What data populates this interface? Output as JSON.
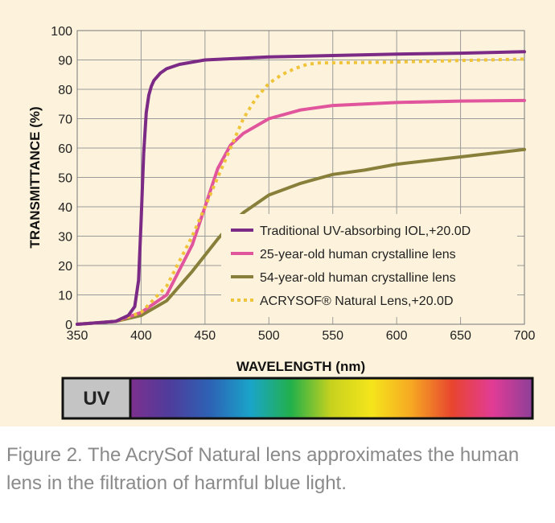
{
  "chart_data": {
    "type": "line",
    "xlabel": "WAVELENGTH (nm)",
    "ylabel": "TRANSMITTANCE (%)",
    "xlim": [
      350,
      700
    ],
    "ylim": [
      0,
      100
    ],
    "x_ticks": [
      350,
      400,
      450,
      500,
      550,
      600,
      650,
      700
    ],
    "y_ticks": [
      0,
      10,
      20,
      30,
      40,
      50,
      60,
      70,
      80,
      90,
      100
    ],
    "grid": true,
    "legend_placement": "bottom-right",
    "series": [
      {
        "name": "Traditional UV-absorbing IOL,+20.0D",
        "color": "#7b2a86",
        "style": "solid",
        "x": [
          350,
          380,
          390,
          395,
          398,
          400,
          402,
          404,
          406,
          408,
          410,
          415,
          420,
          430,
          450,
          500,
          550,
          600,
          650,
          700
        ],
        "y": [
          0,
          1,
          3,
          6,
          15,
          35,
          58,
          72,
          78,
          81,
          83,
          85.5,
          87,
          88.5,
          90,
          91,
          91.5,
          92,
          92.3,
          92.8
        ]
      },
      {
        "name": "25-year-old human crystalline lens",
        "color": "#e0559c",
        "style": "solid",
        "x": [
          350,
          380,
          400,
          420,
          440,
          450,
          460,
          470,
          480,
          500,
          525,
          550,
          600,
          650,
          700
        ],
        "y": [
          0,
          1,
          4,
          10,
          27,
          40,
          53,
          61,
          65,
          70,
          73,
          74.5,
          75.5,
          76,
          76.2
        ]
      },
      {
        "name": "54-year-old human crystalline lens",
        "color": "#877f3a",
        "style": "solid",
        "x": [
          350,
          380,
          400,
          420,
          440,
          460,
          470,
          480,
          500,
          525,
          550,
          575,
          600,
          650,
          700
        ],
        "y": [
          0,
          1,
          3,
          8,
          18,
          29,
          34,
          38,
          44,
          48,
          51,
          52.5,
          54.5,
          57,
          59.5
        ]
      },
      {
        "name": "ACRYSOF® Natural Lens,+20.0D",
        "color": "#f0c43a",
        "style": "dotted",
        "x": [
          350,
          380,
          400,
          420,
          440,
          450,
          460,
          470,
          480,
          490,
          500,
          510,
          520,
          530,
          540,
          550,
          600,
          650,
          700
        ],
        "y": [
          0,
          1,
          4,
          13,
          30,
          40,
          50,
          60,
          70,
          77,
          82,
          85,
          87,
          88.5,
          89,
          89,
          89.3,
          89.8,
          90.3
        ]
      }
    ]
  },
  "spectrum_bar": {
    "uv_label": "UV",
    "uv_color": "#c4c4c4",
    "gradient_colors": [
      "#7d2f8e",
      "#4e3d9c",
      "#2c63b5",
      "#1aa5c9",
      "#22b04a",
      "#c8d21e",
      "#f5e51b",
      "#f6a723",
      "#e8452e",
      "#e23b95",
      "#8d3f99"
    ]
  },
  "caption": "Figure 2. The AcrySof Natural lens approximates the human lens in the filtration of harmful blue light."
}
